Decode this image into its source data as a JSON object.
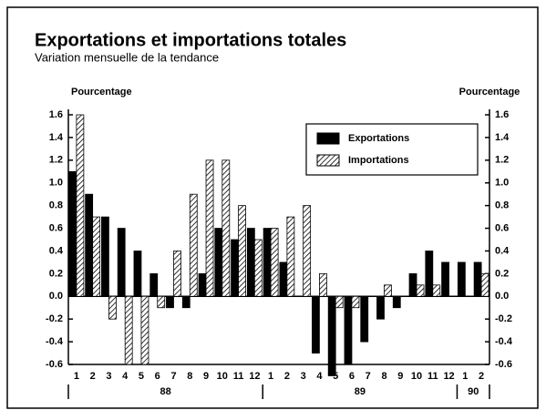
{
  "chart_data": {
    "type": "bar",
    "title": "Exportations et importations totales",
    "subtitle": "Variation mensuelle de la tendance",
    "ylabel": "Pourcentage",
    "y2label": "Pourcentage",
    "categories": [
      "1",
      "2",
      "3",
      "4",
      "5",
      "6",
      "7",
      "8",
      "9",
      "10",
      "11",
      "12",
      "1",
      "2",
      "3",
      "4",
      "5",
      "6",
      "7",
      "8",
      "9",
      "10",
      "11",
      "12",
      "1",
      "2"
    ],
    "year_labels": [
      "88",
      "89",
      "90"
    ],
    "series": [
      {
        "name": "Exportations",
        "color": "#000000",
        "hatch": false,
        "values": [
          1.1,
          0.9,
          0.7,
          0.6,
          0.4,
          0.2,
          -0.1,
          -0.1,
          0.2,
          0.6,
          0.5,
          0.6,
          0.6,
          0.3,
          0.0,
          -0.5,
          -0.7,
          -0.6,
          -0.4,
          -0.2,
          -0.1,
          0.2,
          0.4,
          0.3,
          0.3,
          0.3
        ]
      },
      {
        "name": "Importations",
        "color": "#000000",
        "hatch": true,
        "values": [
          1.6,
          0.7,
          -0.2,
          -0.6,
          -0.6,
          -0.1,
          0.4,
          0.9,
          1.2,
          1.2,
          0.8,
          0.5,
          0.6,
          0.7,
          0.8,
          0.2,
          -0.1,
          -0.1,
          0.0,
          0.1,
          0.0,
          0.1,
          0.1,
          0.0,
          0.0,
          0.2
        ]
      }
    ],
    "ylim": [
      -0.6,
      1.6
    ],
    "yticks": [
      1.6,
      1.4,
      1.2,
      {
        "value": 1,
        "label": "1.0"
      },
      0.8,
      0.6,
      0.4,
      0.2,
      {
        "value": 0,
        "label": "0.0"
      },
      -0.2,
      -0.4,
      -0.6
    ],
    "y2lim": [
      -0.6,
      1.6
    ],
    "y2ticks": [
      1.6,
      1.4,
      1.2,
      {
        "value": 1,
        "label": "1.0"
      },
      0.8,
      0.6,
      0.4,
      0.2,
      {
        "value": 0,
        "label": "0.0"
      },
      -0.2,
      -0.4,
      -0.6
    ],
    "legend": "upper right",
    "grid": false
  }
}
